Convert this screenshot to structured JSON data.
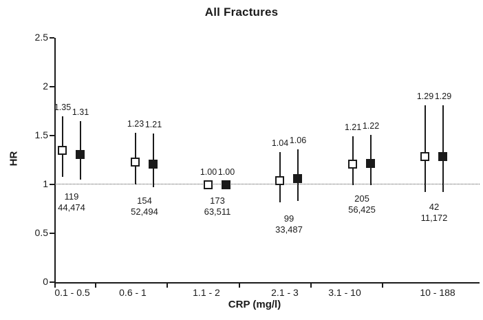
{
  "page_title": "All Fractures",
  "colors": {
    "foreground": "#1a1a1a",
    "background": "#ffffff"
  },
  "chart_data": {
    "type": "scatter",
    "subtype": "forest-plot-hazard-ratios-with-95ci",
    "title": "All Fractures",
    "xlabel": "CRP (mg/l)",
    "ylabel": "HR",
    "ylim": [
      0,
      2.5
    ],
    "yticks": [
      "0",
      "0.5",
      "1",
      "1.5",
      "2",
      "2.5"
    ],
    "ytick_values": [
      0,
      0.5,
      1,
      1.5,
      2,
      2.5
    ],
    "reference_line": 1.0,
    "grid": false,
    "legend": "none",
    "categories": [
      "0.1 - 0.5",
      "0.6 - 1",
      "1.1 - 2",
      "2.1 - 3",
      "3.1 - 10",
      "10 - 188"
    ],
    "series": [
      {
        "name": "open-square-series",
        "marker": "open-square",
        "values": [
          1.35,
          1.23,
          1.0,
          1.04,
          1.21,
          1.29
        ],
        "ci_low": [
          1.08,
          1.0,
          null,
          0.82,
          0.99,
          0.92
        ],
        "ci_high": [
          1.7,
          1.53,
          null,
          1.33,
          1.49,
          1.81
        ],
        "labels": [
          "1.35",
          "1.23",
          "1.00",
          "1.04",
          "1.21",
          "1.29"
        ]
      },
      {
        "name": "filled-square-series",
        "marker": "filled-square",
        "values": [
          1.31,
          1.21,
          1.0,
          1.06,
          1.22,
          1.29
        ],
        "ci_low": [
          1.05,
          0.97,
          null,
          0.83,
          0.99,
          0.92
        ],
        "ci_high": [
          1.65,
          1.52,
          null,
          1.36,
          1.51,
          1.81
        ],
        "labels": [
          "1.31",
          "1.21",
          "1.00",
          "1.06",
          "1.22",
          "1.29"
        ]
      }
    ],
    "counts_per_category": [
      {
        "line1": "119",
        "line2": "44,474"
      },
      {
        "line1": "154",
        "line2": "52,494"
      },
      {
        "line1": "173",
        "line2": "63,511"
      },
      {
        "line1": "99",
        "line2": "33,487"
      },
      {
        "line1": "205",
        "line2": "56,425"
      },
      {
        "line1": "42",
        "line2": "11,172"
      }
    ]
  }
}
